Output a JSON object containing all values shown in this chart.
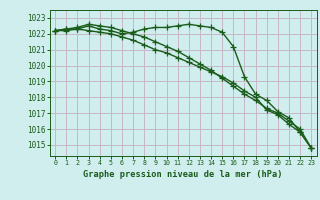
{
  "title": "Graphe pression niveau de la mer (hPa)",
  "bg_color": "#d0eeee",
  "grid_color": "#c8b8c8",
  "line_color": "#1a5c1a",
  "ylim": [
    1014.3,
    1023.5
  ],
  "yticks": [
    1015,
    1016,
    1017,
    1018,
    1019,
    1020,
    1021,
    1022,
    1023
  ],
  "xlim": [
    -0.5,
    23.5
  ],
  "xticks": [
    0,
    1,
    2,
    3,
    4,
    5,
    6,
    7,
    8,
    9,
    10,
    11,
    12,
    13,
    14,
    15,
    16,
    17,
    18,
    19,
    20,
    21,
    22,
    23
  ],
  "line1": [
    1022.2,
    1022.3,
    1022.3,
    1022.5,
    1022.3,
    1022.2,
    1022.0,
    1022.1,
    1022.3,
    1022.4,
    1022.4,
    1022.5,
    1022.6,
    1022.5,
    1022.4,
    1022.1,
    1021.2,
    1019.3,
    1018.2,
    1017.8,
    1017.1,
    1016.7,
    1015.8,
    1014.8
  ],
  "line2": [
    1022.2,
    1022.3,
    1022.4,
    1022.6,
    1022.5,
    1022.4,
    1022.2,
    1022.0,
    1021.8,
    1021.5,
    1021.2,
    1020.9,
    1020.5,
    1020.1,
    1019.7,
    1019.2,
    1018.7,
    1018.2,
    1017.8,
    1017.3,
    1017.0,
    1016.5,
    1016.0,
    1014.8
  ],
  "line3": [
    1022.2,
    1022.2,
    1022.3,
    1022.2,
    1022.1,
    1022.0,
    1021.8,
    1021.6,
    1021.3,
    1021.0,
    1020.8,
    1020.5,
    1020.2,
    1019.9,
    1019.6,
    1019.3,
    1018.9,
    1018.4,
    1018.0,
    1017.2,
    1016.9,
    1016.3,
    1015.8,
    1014.8
  ],
  "figsize": [
    3.2,
    2.0
  ],
  "dpi": 100
}
